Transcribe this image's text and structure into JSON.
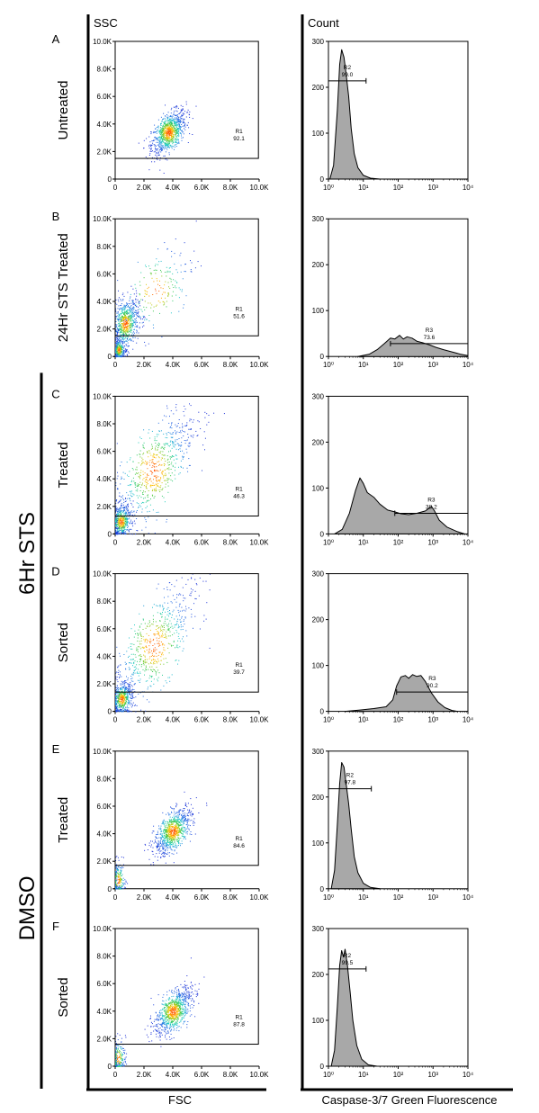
{
  "chart_data": {
    "type": "scatter",
    "title": "",
    "axes_titles": {
      "scatter_y": "SSC",
      "scatter_x": "FSC",
      "hist_y": "Count",
      "hist_x": "Caspase-3/7 Green Fluorescence"
    },
    "scatter_ticks_x": [
      "0",
      "2.0K",
      "4.0K",
      "6.0K",
      "8.0K",
      "10.0K"
    ],
    "scatter_ticks_y": [
      "0",
      "2.0K",
      "4.0K",
      "6.0K",
      "8.0K",
      "10.0K"
    ],
    "scatter_xlim": [
      0,
      10000
    ],
    "scatter_ylim": [
      0,
      10000
    ],
    "hist_ticks_x": [
      "10⁰",
      "10¹",
      "10²",
      "10³",
      "10⁴"
    ],
    "hist_ticks_y": [
      "0",
      "100",
      "200",
      "300"
    ],
    "hist_xscale": "log",
    "hist_xlim": [
      1,
      10000
    ],
    "hist_ylim": [
      0,
      300
    ],
    "groups": [
      {
        "label": "6Hr STS",
        "rows": [
          2,
          3
        ]
      },
      {
        "label": "DMSO",
        "rows": [
          4,
          5
        ]
      }
    ],
    "colors": {
      "hist_fill": "#a8a8a8",
      "scatter_low": "#1a2bd6",
      "scatter_mid": "#1fd0c8",
      "scatter_high": "#ff5a00",
      "axis": "#000000"
    },
    "panels": [
      {
        "letter": "A",
        "label": "Untreated",
        "scatter": {
          "gate_name": "R1",
          "gate_value": "92.1",
          "gate_ssc_min": 1500,
          "gate_fsc_max": 9950,
          "clusters": [
            {
              "fsc": 3700,
              "ssc": 3400,
              "sd_fsc": 600,
              "sd_ssc": 800,
              "rho": 0.55,
              "n": 900
            }
          ]
        },
        "histogram": {
          "gate_name": "R2",
          "gate_value": "99.0",
          "gate_from": 1,
          "gate_to": 12,
          "gate_y": 214,
          "curve": [
            [
              1.1,
              0
            ],
            [
              1.4,
              30
            ],
            [
              1.8,
              150
            ],
            [
              2.1,
              250
            ],
            [
              2.4,
              282
            ],
            [
              2.8,
              265
            ],
            [
              3.2,
              230
            ],
            [
              3.8,
              180
            ],
            [
              4.5,
              110
            ],
            [
              5.5,
              55
            ],
            [
              7,
              25
            ],
            [
              10,
              8
            ],
            [
              16,
              2
            ],
            [
              30,
              0
            ]
          ]
        }
      },
      {
        "letter": "B",
        "label": "24Hr STS Treated",
        "scatter": {
          "gate_name": "R1",
          "gate_value": "51.6",
          "gate_ssc_min": 1500,
          "gate_fsc_max": 9950,
          "clusters": [
            {
              "fsc": 700,
              "ssc": 2400,
              "sd_fsc": 450,
              "sd_ssc": 900,
              "rho": 0.3,
              "n": 650
            },
            {
              "fsc": 2800,
              "ssc": 4800,
              "sd_fsc": 1400,
              "sd_ssc": 1800,
              "rho": 0.6,
              "n": 220
            },
            {
              "fsc": 250,
              "ssc": 500,
              "sd_fsc": 200,
              "sd_ssc": 400,
              "rho": 0,
              "n": 250
            }
          ]
        },
        "histogram": {
          "gate_name": "R3",
          "gate_value": "73.6",
          "gate_from": 60,
          "gate_to": 10000,
          "gate_y": 28,
          "curve": [
            [
              7,
              0
            ],
            [
              15,
              5
            ],
            [
              25,
              15
            ],
            [
              40,
              28
            ],
            [
              60,
              40
            ],
            [
              80,
              38
            ],
            [
              110,
              46
            ],
            [
              140,
              38
            ],
            [
              180,
              43
            ],
            [
              250,
              40
            ],
            [
              350,
              33
            ],
            [
              500,
              30
            ],
            [
              800,
              25
            ],
            [
              1200,
              20
            ],
            [
              2000,
              15
            ],
            [
              3500,
              10
            ],
            [
              6000,
              5
            ],
            [
              10000,
              2
            ]
          ]
        }
      },
      {
        "letter": "C",
        "label": "Treated",
        "scatter": {
          "gate_name": "R1",
          "gate_value": "46.3",
          "gate_ssc_min": 1300,
          "gate_fsc_max": 9950,
          "clusters": [
            {
              "fsc": 2600,
              "ssc": 4600,
              "sd_fsc": 1500,
              "sd_ssc": 2300,
              "rho": 0.75,
              "n": 700
            },
            {
              "fsc": 400,
              "ssc": 900,
              "sd_fsc": 350,
              "sd_ssc": 600,
              "rho": 0.2,
              "n": 450
            }
          ]
        },
        "histogram": {
          "gate_name": "R3",
          "gate_value": "38.2",
          "gate_from": 80,
          "gate_to": 10000,
          "gate_y": 45,
          "curve": [
            [
              1.5,
              0
            ],
            [
              2.5,
              10
            ],
            [
              4,
              45
            ],
            [
              6,
              95
            ],
            [
              8,
              122
            ],
            [
              10,
              110
            ],
            [
              13,
              90
            ],
            [
              20,
              80
            ],
            [
              30,
              65
            ],
            [
              50,
              52
            ],
            [
              80,
              48
            ],
            [
              120,
              44
            ],
            [
              200,
              42
            ],
            [
              350,
              45
            ],
            [
              600,
              50
            ],
            [
              900,
              60
            ],
            [
              1100,
              50
            ],
            [
              1500,
              30
            ],
            [
              2500,
              15
            ],
            [
              5000,
              5
            ],
            [
              8000,
              0
            ]
          ]
        }
      },
      {
        "letter": "D",
        "label": "Sorted",
        "scatter": {
          "gate_name": "R1",
          "gate_value": "39.7",
          "gate_ssc_min": 1400,
          "gate_fsc_max": 9950,
          "clusters": [
            {
              "fsc": 2700,
              "ssc": 4800,
              "sd_fsc": 1500,
              "sd_ssc": 2300,
              "rho": 0.75,
              "n": 650
            },
            {
              "fsc": 450,
              "ssc": 900,
              "sd_fsc": 350,
              "sd_ssc": 600,
              "rho": 0.2,
              "n": 450
            }
          ]
        },
        "histogram": {
          "gate_name": "R3",
          "gate_value": "90.2",
          "gate_from": 90,
          "gate_to": 10000,
          "gate_y": 42,
          "curve": [
            [
              3,
              0
            ],
            [
              8,
              3
            ],
            [
              20,
              6
            ],
            [
              45,
              10
            ],
            [
              70,
              25
            ],
            [
              90,
              55
            ],
            [
              120,
              75
            ],
            [
              160,
              78
            ],
            [
              200,
              72
            ],
            [
              260,
              80
            ],
            [
              340,
              76
            ],
            [
              450,
              78
            ],
            [
              600,
              65
            ],
            [
              900,
              40
            ],
            [
              1400,
              20
            ],
            [
              2200,
              8
            ],
            [
              3500,
              2
            ],
            [
              5000,
              0
            ]
          ]
        }
      },
      {
        "letter": "E",
        "label": "Treated",
        "scatter": {
          "gate_name": "R1",
          "gate_value": "84.6",
          "gate_ssc_min": 1700,
          "gate_fsc_max": 9950,
          "clusters": [
            {
              "fsc": 4000,
              "ssc": 4200,
              "sd_fsc": 650,
              "sd_ssc": 850,
              "rho": 0.6,
              "n": 850
            },
            {
              "fsc": 200,
              "ssc": 600,
              "sd_fsc": 250,
              "sd_ssc": 700,
              "rho": 0,
              "n": 200
            }
          ]
        },
        "histogram": {
          "gate_name": "R2",
          "gate_value": "97.8",
          "gate_from": 1,
          "gate_to": 17,
          "gate_y": 218,
          "curve": [
            [
              1.2,
              0
            ],
            [
              1.5,
              40
            ],
            [
              1.8,
              140
            ],
            [
              2.1,
              230
            ],
            [
              2.4,
              275
            ],
            [
              2.8,
              265
            ],
            [
              3.2,
              230
            ],
            [
              3.8,
              185
            ],
            [
              4.5,
              130
            ],
            [
              5.5,
              70
            ],
            [
              7,
              35
            ],
            [
              10,
              12
            ],
            [
              16,
              3
            ],
            [
              30,
              0
            ]
          ]
        }
      },
      {
        "letter": "F",
        "label": "Sorted",
        "scatter": {
          "gate_name": "R1",
          "gate_value": "87.8",
          "gate_ssc_min": 1600,
          "gate_fsc_max": 9950,
          "clusters": [
            {
              "fsc": 4000,
              "ssc": 4000,
              "sd_fsc": 650,
              "sd_ssc": 850,
              "rho": 0.6,
              "n": 850
            },
            {
              "fsc": 200,
              "ssc": 600,
              "sd_fsc": 250,
              "sd_ssc": 700,
              "rho": 0,
              "n": 200
            }
          ]
        },
        "histogram": {
          "gate_name": "R2",
          "gate_value": "99.5",
          "gate_from": 1,
          "gate_to": 12,
          "gate_y": 212,
          "curve": [
            [
              1.2,
              0
            ],
            [
              1.5,
              35
            ],
            [
              1.8,
              130
            ],
            [
              2.1,
              220
            ],
            [
              2.4,
              252
            ],
            [
              2.7,
              238
            ],
            [
              3.0,
              255
            ],
            [
              3.5,
              220
            ],
            [
              4.2,
              160
            ],
            [
              5,
              100
            ],
            [
              6.5,
              45
            ],
            [
              9,
              15
            ],
            [
              14,
              3
            ],
            [
              25,
              0
            ]
          ]
        }
      }
    ]
  }
}
